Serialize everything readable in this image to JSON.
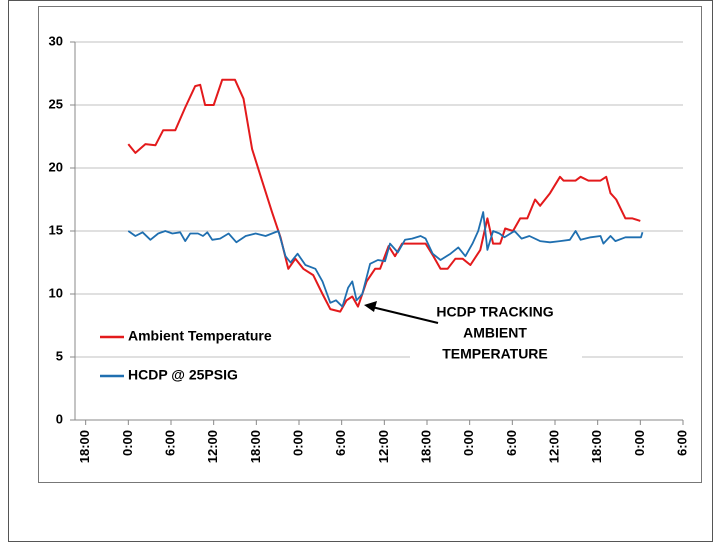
{
  "chart_data": {
    "type": "line",
    "annotation": [
      "HCDP TRACKING",
      "AMBIENT",
      "TEMPERATURE"
    ],
    "series": [
      {
        "name": "Ambient Temperature",
        "color": "#e31a1c",
        "x": [
          0,
          1.0,
          2.4,
          3.8,
          4.9,
          6.6,
          8.0,
          9.4,
          10.1,
          10.8,
          12.0,
          13.2,
          15.0,
          16.2,
          17.4,
          18.8,
          20.2,
          21.4,
          22.5,
          23.5,
          24.6,
          26.0,
          27.3,
          28.4,
          29.8,
          30.7,
          31.5,
          32.3,
          33.5,
          34.7,
          35.4,
          36.6,
          37.5,
          38.5,
          39.9,
          41.8,
          42.9,
          43.9,
          44.9,
          46.0,
          47.0,
          48.1,
          49.5,
          50.5,
          51.3,
          52.3,
          53.0,
          54.1,
          55.1,
          56.1,
          57.2,
          57.9,
          59.3,
          60.7,
          61.2,
          62.9,
          63.6,
          64.7,
          66.4,
          67.2,
          67.8,
          68.6,
          69.9,
          70.9,
          72.0
        ],
        "values": [
          21.9,
          21.2,
          21.9,
          21.8,
          23.0,
          23.0,
          24.8,
          26.5,
          26.6,
          25.0,
          25.0,
          27.0,
          27.0,
          25.5,
          21.5,
          19.0,
          16.5,
          14.5,
          12.0,
          12.8,
          12.0,
          11.5,
          10.0,
          8.8,
          8.6,
          9.5,
          9.8,
          9.0,
          11.0,
          12.0,
          12.0,
          13.8,
          13.0,
          14.0,
          14.0,
          14.0,
          13.0,
          12.0,
          12.0,
          12.8,
          12.8,
          12.3,
          13.5,
          16.0,
          14.0,
          14.0,
          15.2,
          15.0,
          16.0,
          16.0,
          17.5,
          17.0,
          18.0,
          19.3,
          19.0,
          19.0,
          19.3,
          19.0,
          19.0,
          19.3,
          18.0,
          17.5,
          16.0,
          16.0,
          15.8
        ]
      },
      {
        "name": "HCDP @ 25PSIG",
        "color": "#1f6fb0",
        "x": [
          0,
          1.0,
          2.0,
          3.1,
          4.2,
          5.2,
          6.2,
          7.3,
          8.0,
          8.7,
          9.8,
          10.5,
          11.1,
          11.8,
          12.9,
          14.1,
          15.2,
          16.5,
          17.9,
          19.3,
          20.2,
          21.1,
          22.1,
          22.8,
          23.8,
          24.9,
          26.3,
          27.3,
          28.4,
          29.2,
          30.1,
          30.9,
          31.5,
          32.1,
          32.9,
          34.0,
          35.1,
          36.1,
          36.8,
          37.9,
          38.9,
          39.9,
          41.1,
          41.8,
          42.8,
          43.9,
          45.3,
          46.4,
          47.4,
          48.4,
          49.2,
          49.9,
          50.5,
          51.3,
          52.2,
          52.9,
          54.3,
          55.3,
          56.4,
          57.9,
          59.3,
          60.7,
          62.1,
          62.9,
          63.6,
          65.0,
          66.4,
          66.8,
          67.8,
          68.5,
          69.9,
          72.1,
          72.3
        ],
        "values": [
          15.0,
          14.6,
          14.9,
          14.3,
          14.8,
          15.0,
          14.8,
          14.9,
          14.2,
          14.8,
          14.8,
          14.6,
          14.9,
          14.3,
          14.4,
          14.8,
          14.1,
          14.6,
          14.8,
          14.6,
          14.8,
          15.0,
          13.0,
          12.5,
          13.2,
          12.3,
          12.0,
          11.0,
          9.3,
          9.5,
          9.0,
          10.5,
          11.0,
          9.5,
          10.0,
          12.4,
          12.7,
          12.6,
          14.0,
          13.3,
          14.3,
          14.4,
          14.6,
          14.4,
          13.2,
          12.7,
          13.2,
          13.7,
          13.0,
          14.0,
          15.0,
          16.5,
          13.5,
          15.0,
          14.8,
          14.5,
          15.0,
          14.4,
          14.6,
          14.2,
          14.1,
          14.2,
          14.3,
          15.0,
          14.3,
          14.5,
          14.6,
          14.0,
          14.6,
          14.2,
          14.5,
          14.5,
          14.9
        ]
      }
    ],
    "xlim": [
      -7.5,
      78
    ],
    "xticks": [
      {
        "value": -6,
        "label": "18:00"
      },
      {
        "value": 0,
        "label": "0:00"
      },
      {
        "value": 6,
        "label": "6:00"
      },
      {
        "value": 12,
        "label": "12:00"
      },
      {
        "value": 18,
        "label": "18:00"
      },
      {
        "value": 24,
        "label": "0:00"
      },
      {
        "value": 30,
        "label": "6:00"
      },
      {
        "value": 36,
        "label": "12:00"
      },
      {
        "value": 42,
        "label": "18:00"
      },
      {
        "value": 48,
        "label": "0:00"
      },
      {
        "value": 54,
        "label": "6:00"
      },
      {
        "value": 60,
        "label": "12:00"
      },
      {
        "value": 66,
        "label": "18:00"
      },
      {
        "value": 72,
        "label": "0:00"
      },
      {
        "value": 78,
        "label": "6:00"
      }
    ],
    "ylim": [
      0,
      30
    ],
    "yticks": [
      0,
      5,
      10,
      15,
      20,
      25,
      30
    ],
    "grid": true,
    "legend": "left"
  }
}
